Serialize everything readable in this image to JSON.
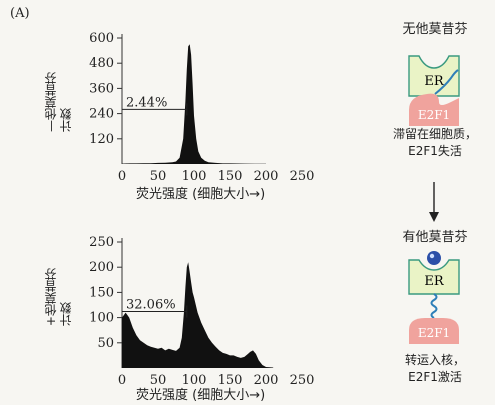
{
  "panel_label": "(A)",
  "histograms": [
    {
      "ylabel_lines": [
        "—他莫昔芬",
        "计数"
      ],
      "xlabel": "荧光强度 (细胞大小→)",
      "annotation": "2.44%"
    },
    {
      "ylabel_lines": [
        "+他莫昔芬",
        "计数"
      ],
      "xlabel": "荧光强度 (细胞大小→)",
      "annotation": "32.06%"
    }
  ],
  "chart_data": [
    {
      "type": "area",
      "x_ticks": [
        "0",
        "50",
        "100",
        "150",
        "200",
        "250"
      ],
      "y_ticks": [
        "120",
        "240",
        "360",
        "480",
        "600"
      ],
      "xlim": [
        0,
        250
      ],
      "ylim": [
        0,
        600
      ],
      "annotation": "2.44%",
      "x": [
        0,
        10,
        20,
        30,
        40,
        50,
        60,
        70,
        75,
        80,
        85,
        88,
        90,
        92,
        94,
        96,
        98,
        100,
        103,
        106,
        110,
        115,
        120,
        130,
        140,
        150,
        170,
        200
      ],
      "y": [
        2,
        3,
        3,
        4,
        4,
        5,
        6,
        8,
        12,
        30,
        120,
        300,
        450,
        560,
        570,
        520,
        380,
        230,
        120,
        60,
        30,
        15,
        8,
        5,
        3,
        3,
        2,
        1
      ]
    },
    {
      "type": "area",
      "x_ticks": [
        "0",
        "50",
        "100",
        "150",
        "200",
        "250"
      ],
      "y_ticks": [
        "50",
        "100",
        "150",
        "200",
        "250"
      ],
      "xlim": [
        0,
        250
      ],
      "ylim": [
        0,
        250
      ],
      "annotation": "32.06%",
      "x": [
        0,
        5,
        10,
        15,
        20,
        25,
        30,
        35,
        40,
        45,
        50,
        55,
        60,
        65,
        70,
        75,
        80,
        83,
        86,
        88,
        90,
        92,
        94,
        96,
        98,
        100,
        105,
        110,
        115,
        120,
        125,
        130,
        135,
        140,
        145,
        150,
        155,
        160,
        165,
        170,
        175,
        178,
        182,
        186,
        190,
        195,
        200,
        210
      ],
      "y": [
        100,
        110,
        100,
        80,
        65,
        55,
        50,
        45,
        42,
        40,
        38,
        40,
        35,
        38,
        36,
        34,
        40,
        60,
        110,
        160,
        200,
        210,
        190,
        170,
        150,
        140,
        110,
        90,
        75,
        60,
        50,
        42,
        35,
        30,
        28,
        25,
        25,
        22,
        20,
        22,
        28,
        32,
        35,
        28,
        15,
        6,
        2,
        1
      ]
    }
  ],
  "schematic": {
    "top": {
      "title": "无他莫昔芬",
      "er_label": "ER",
      "e2f1_label": "E2F1",
      "caption_lines": [
        "滞留在细胞质，",
        "E2F1失活"
      ]
    },
    "bottom": {
      "title": "有他莫昔芬",
      "er_label": "ER",
      "e2f1_label": "E2F1",
      "caption_lines": [
        "转运入核，",
        "E2F1激活"
      ]
    }
  },
  "colors": {
    "er_fill": "#eaf3c6",
    "er_stroke": "#3a9a80",
    "e2f1_fill": "#f0a39d",
    "linker": "#2f7fb8",
    "drug": "#2b4fa8",
    "histogram": "#111111"
  }
}
